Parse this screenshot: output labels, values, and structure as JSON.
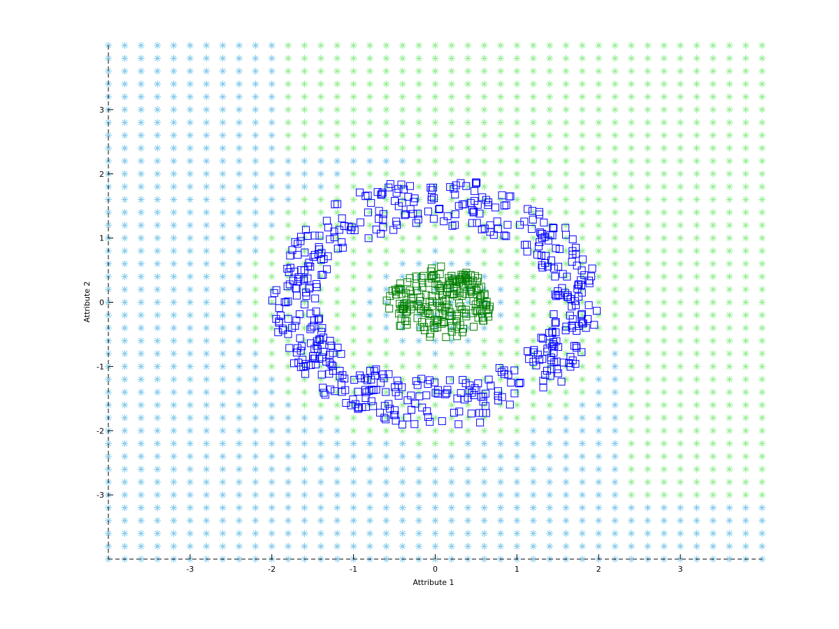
{
  "chart_data": {
    "type": "scatter",
    "title": "",
    "xlabel": "Attribute 1",
    "ylabel": "Attribute 2",
    "xlim": [
      -4,
      4
    ],
    "ylim": [
      -4,
      4
    ],
    "x_ticks": [
      -3,
      -2,
      -1,
      0,
      1,
      2,
      3
    ],
    "y_ticks": [
      -3,
      -2,
      -1,
      0,
      1,
      2,
      3
    ],
    "x_tick_labels": [
      "-3",
      "-2",
      "-1",
      "0",
      "1",
      "2",
      "3"
    ],
    "y_tick_labels": [
      "-3",
      "-2",
      "-1",
      "0",
      "1",
      "2",
      "3"
    ],
    "grid": false,
    "decision_grid": {
      "marker": "asterisk",
      "x_start": -4,
      "x_end": 4,
      "x_step": 0.2,
      "y_start": -4,
      "y_end": 4,
      "y_step": 0.2,
      "colors": {
        "class_1": "#7ec8ea",
        "class_2": "#90ee90"
      },
      "boundary_description": "outer region class_1 (light blue); ring-shaped region and top-right area class_2 (light green)"
    },
    "series": [
      {
        "marker": "square",
        "color": "#0000ff",
        "shape": "annulus",
        "center": [
          0,
          0
        ],
        "radius_x_range": [
          1.45,
          2.0
        ],
        "radius_y_range": [
          1.2,
          1.95
        ],
        "count": 520
      },
      {
        "marker": "square",
        "color": "#008000",
        "shape": "blob",
        "center": [
          0.05,
          0.0
        ],
        "radius_x": 0.65,
        "radius_y": 0.55,
        "count": 220
      }
    ]
  }
}
